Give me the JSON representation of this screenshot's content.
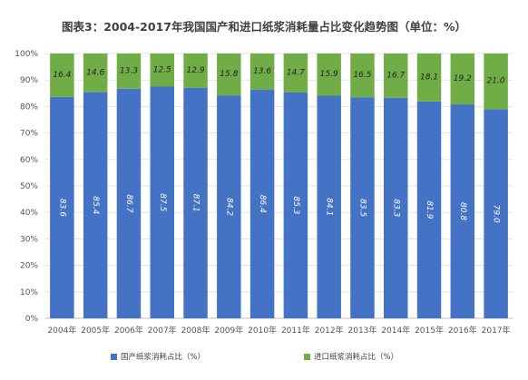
{
  "chart_data": {
    "type": "bar",
    "stacked": true,
    "title": "图表3：2004-2017年我国国产和进口纸浆消耗量占比变化趋势图（单位：%）",
    "categories": [
      "2004年",
      "2005年",
      "2006年",
      "2007年",
      "2008年",
      "2009年",
      "2010年",
      "2011年",
      "2012年",
      "2013年",
      "2014年",
      "2015年",
      "2016年",
      "2017年"
    ],
    "series": [
      {
        "name": "国产纸浆消耗占比（%）",
        "color": "#4472c4",
        "values": [
          83.6,
          85.4,
          86.7,
          87.5,
          87.1,
          84.2,
          86.4,
          85.3,
          84.1,
          83.5,
          83.3,
          81.9,
          80.8,
          79.0
        ]
      },
      {
        "name": "进口纸浆消耗占比（%）",
        "color": "#70ad47",
        "values": [
          16.4,
          14.6,
          13.3,
          12.5,
          12.9,
          15.8,
          13.6,
          14.7,
          15.9,
          16.5,
          16.7,
          18.1,
          19.2,
          21.0
        ]
      }
    ],
    "ylim": [
      0,
      100
    ],
    "yticks": [
      "0%",
      "10%",
      "20%",
      "30%",
      "40%",
      "50%",
      "60%",
      "70%",
      "80%",
      "90%",
      "100%"
    ],
    "grid": true,
    "legend_position": "bottom"
  }
}
